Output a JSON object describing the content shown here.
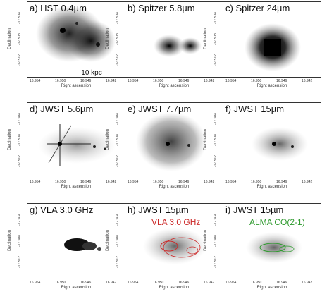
{
  "panels": [
    {
      "label": "a) HST 0.4µm",
      "overlay": "",
      "overlay_color": ""
    },
    {
      "label": "b) Spitzer 5.8µm",
      "overlay": "",
      "overlay_color": ""
    },
    {
      "label": "c) Spitzer 24µm",
      "overlay": "",
      "overlay_color": ""
    },
    {
      "label": "d) JWST 5.6µm",
      "overlay": "",
      "overlay_color": ""
    },
    {
      "label": "e) JWST 7.7µm",
      "overlay": "",
      "overlay_color": ""
    },
    {
      "label": "f) JWST 15µm",
      "overlay": "",
      "overlay_color": ""
    },
    {
      "label": "g) VLA 3.0 GHz",
      "overlay": "",
      "overlay_color": ""
    },
    {
      "label": "h) JWST 15µm",
      "overlay": "VLA 3.0 GHz",
      "overlay_color": "#cc2a2a"
    },
    {
      "label": "i) JWST 15µm",
      "overlay": "ALMA CO(2-1)",
      "overlay_color": "#2e9a2e"
    }
  ],
  "axes": {
    "xlabel": "Right ascension",
    "ylabel": "Declination",
    "xticks": [
      "16.954",
      "16.950",
      "16.946",
      "16.942"
    ],
    "yticks": [
      "-17.504",
      "-17.508",
      "-17.512"
    ]
  },
  "scalebar": {
    "label": "10 kpc"
  }
}
